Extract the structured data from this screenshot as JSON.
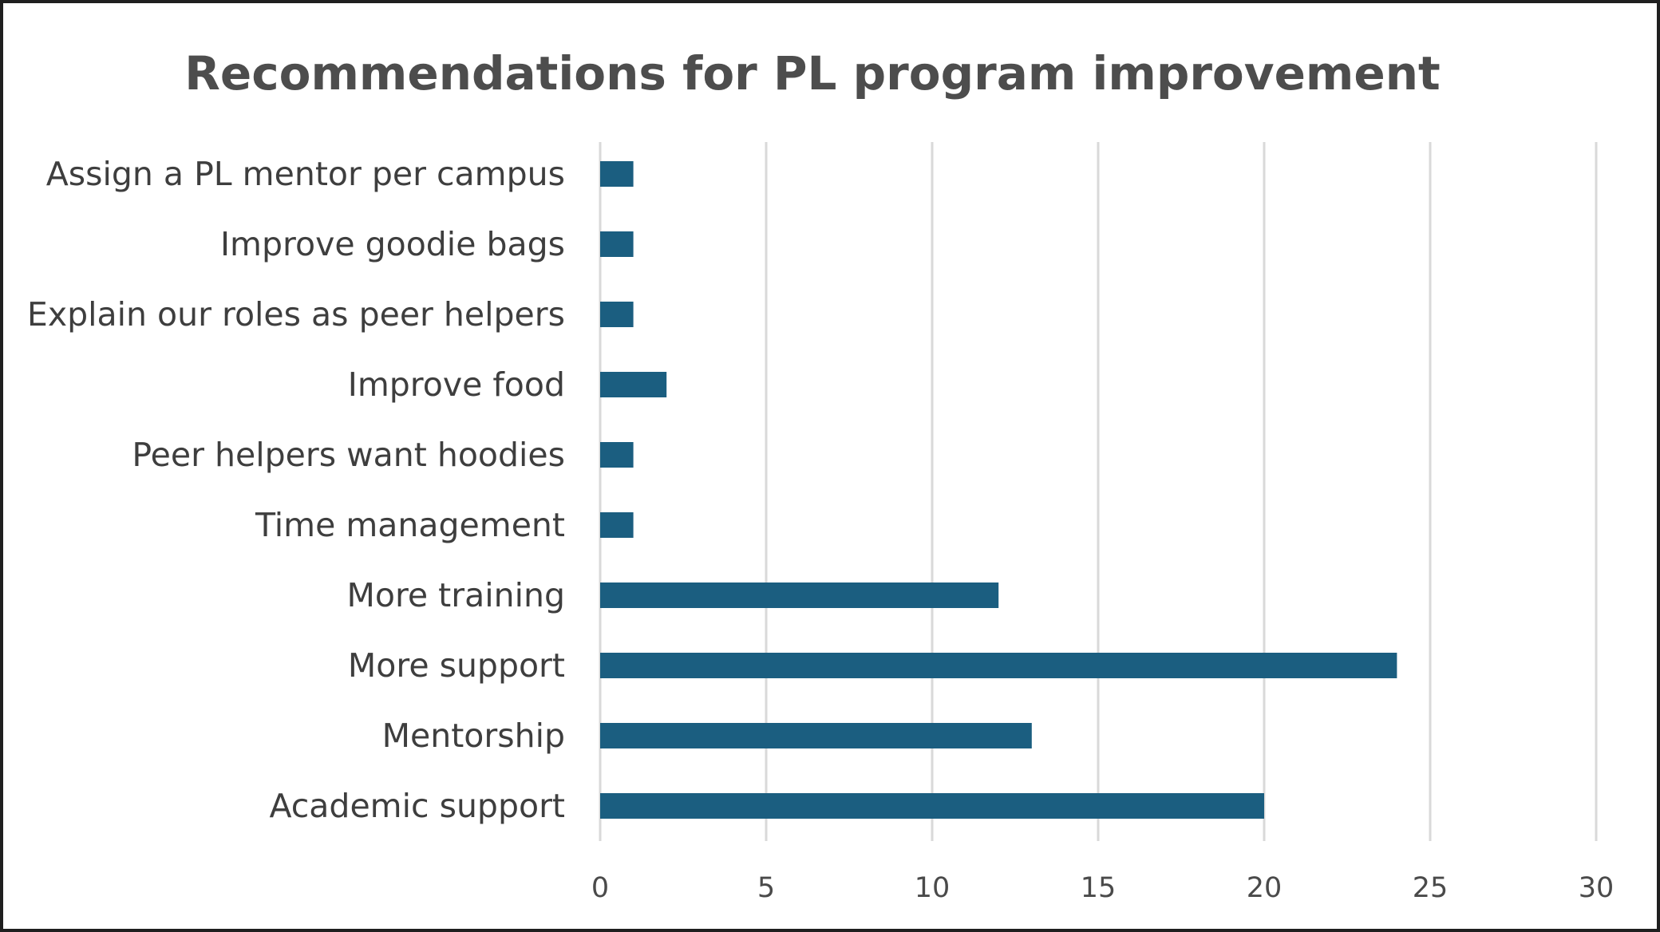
{
  "chart_data": {
    "type": "bar",
    "orientation": "horizontal",
    "title": "Recommendations for PL program improvement",
    "categories": [
      "Assign a PL mentor per campus",
      "Improve goodie bags",
      "Explain our roles as peer helpers",
      "Improve food",
      "Peer helpers want hoodies",
      "Time management",
      "More training",
      "More support",
      "Mentorship",
      "Academic support"
    ],
    "values": [
      1,
      1,
      1,
      2,
      1,
      1,
      12,
      24,
      13,
      20
    ],
    "xlim": [
      0,
      30
    ],
    "xticks": [
      0,
      5,
      10,
      15,
      20,
      25,
      30
    ],
    "xlabel": "",
    "ylabel": "",
    "bar_color": "#1b5e80",
    "grid": "vertical",
    "legend": "none"
  }
}
